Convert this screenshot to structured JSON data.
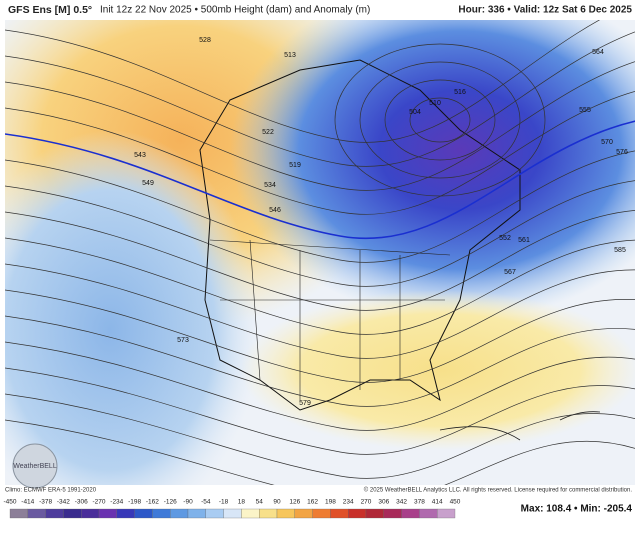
{
  "header": {
    "model": "GFS Ens [M] 0.5°",
    "description": "Init 12z 22 Nov 2025 • 500mb Height (dam) and Anomaly (m)",
    "valid": "Hour: 336 • Valid: 12z Sat 6 Dec 2025"
  },
  "map": {
    "contour_labels": [
      "528",
      "543",
      "549",
      "573",
      "579",
      "585",
      "567",
      "561",
      "552",
      "516",
      "504",
      "510",
      "555",
      "564",
      "570",
      "576",
      "513",
      "519",
      "522",
      "534",
      "546"
    ],
    "logo": "WeatherBELL"
  },
  "footer": {
    "climo": "Climo: ECMWF ERA-5 1991-2020",
    "copyright": "© 2025 WeatherBELL Analytics LLC. All rights reserved. License required for commercial distribution.",
    "stats": "Max: 108.4 • Min: -205.4"
  },
  "colorbar": {
    "ticks": [
      -450,
      -414,
      -378,
      -342,
      -306,
      -270,
      -234,
      -198,
      -162,
      -126,
      -90,
      -54,
      -18,
      18,
      54,
      90,
      126,
      162,
      198,
      234,
      270,
      306,
      342,
      378,
      414,
      450
    ]
  }
}
